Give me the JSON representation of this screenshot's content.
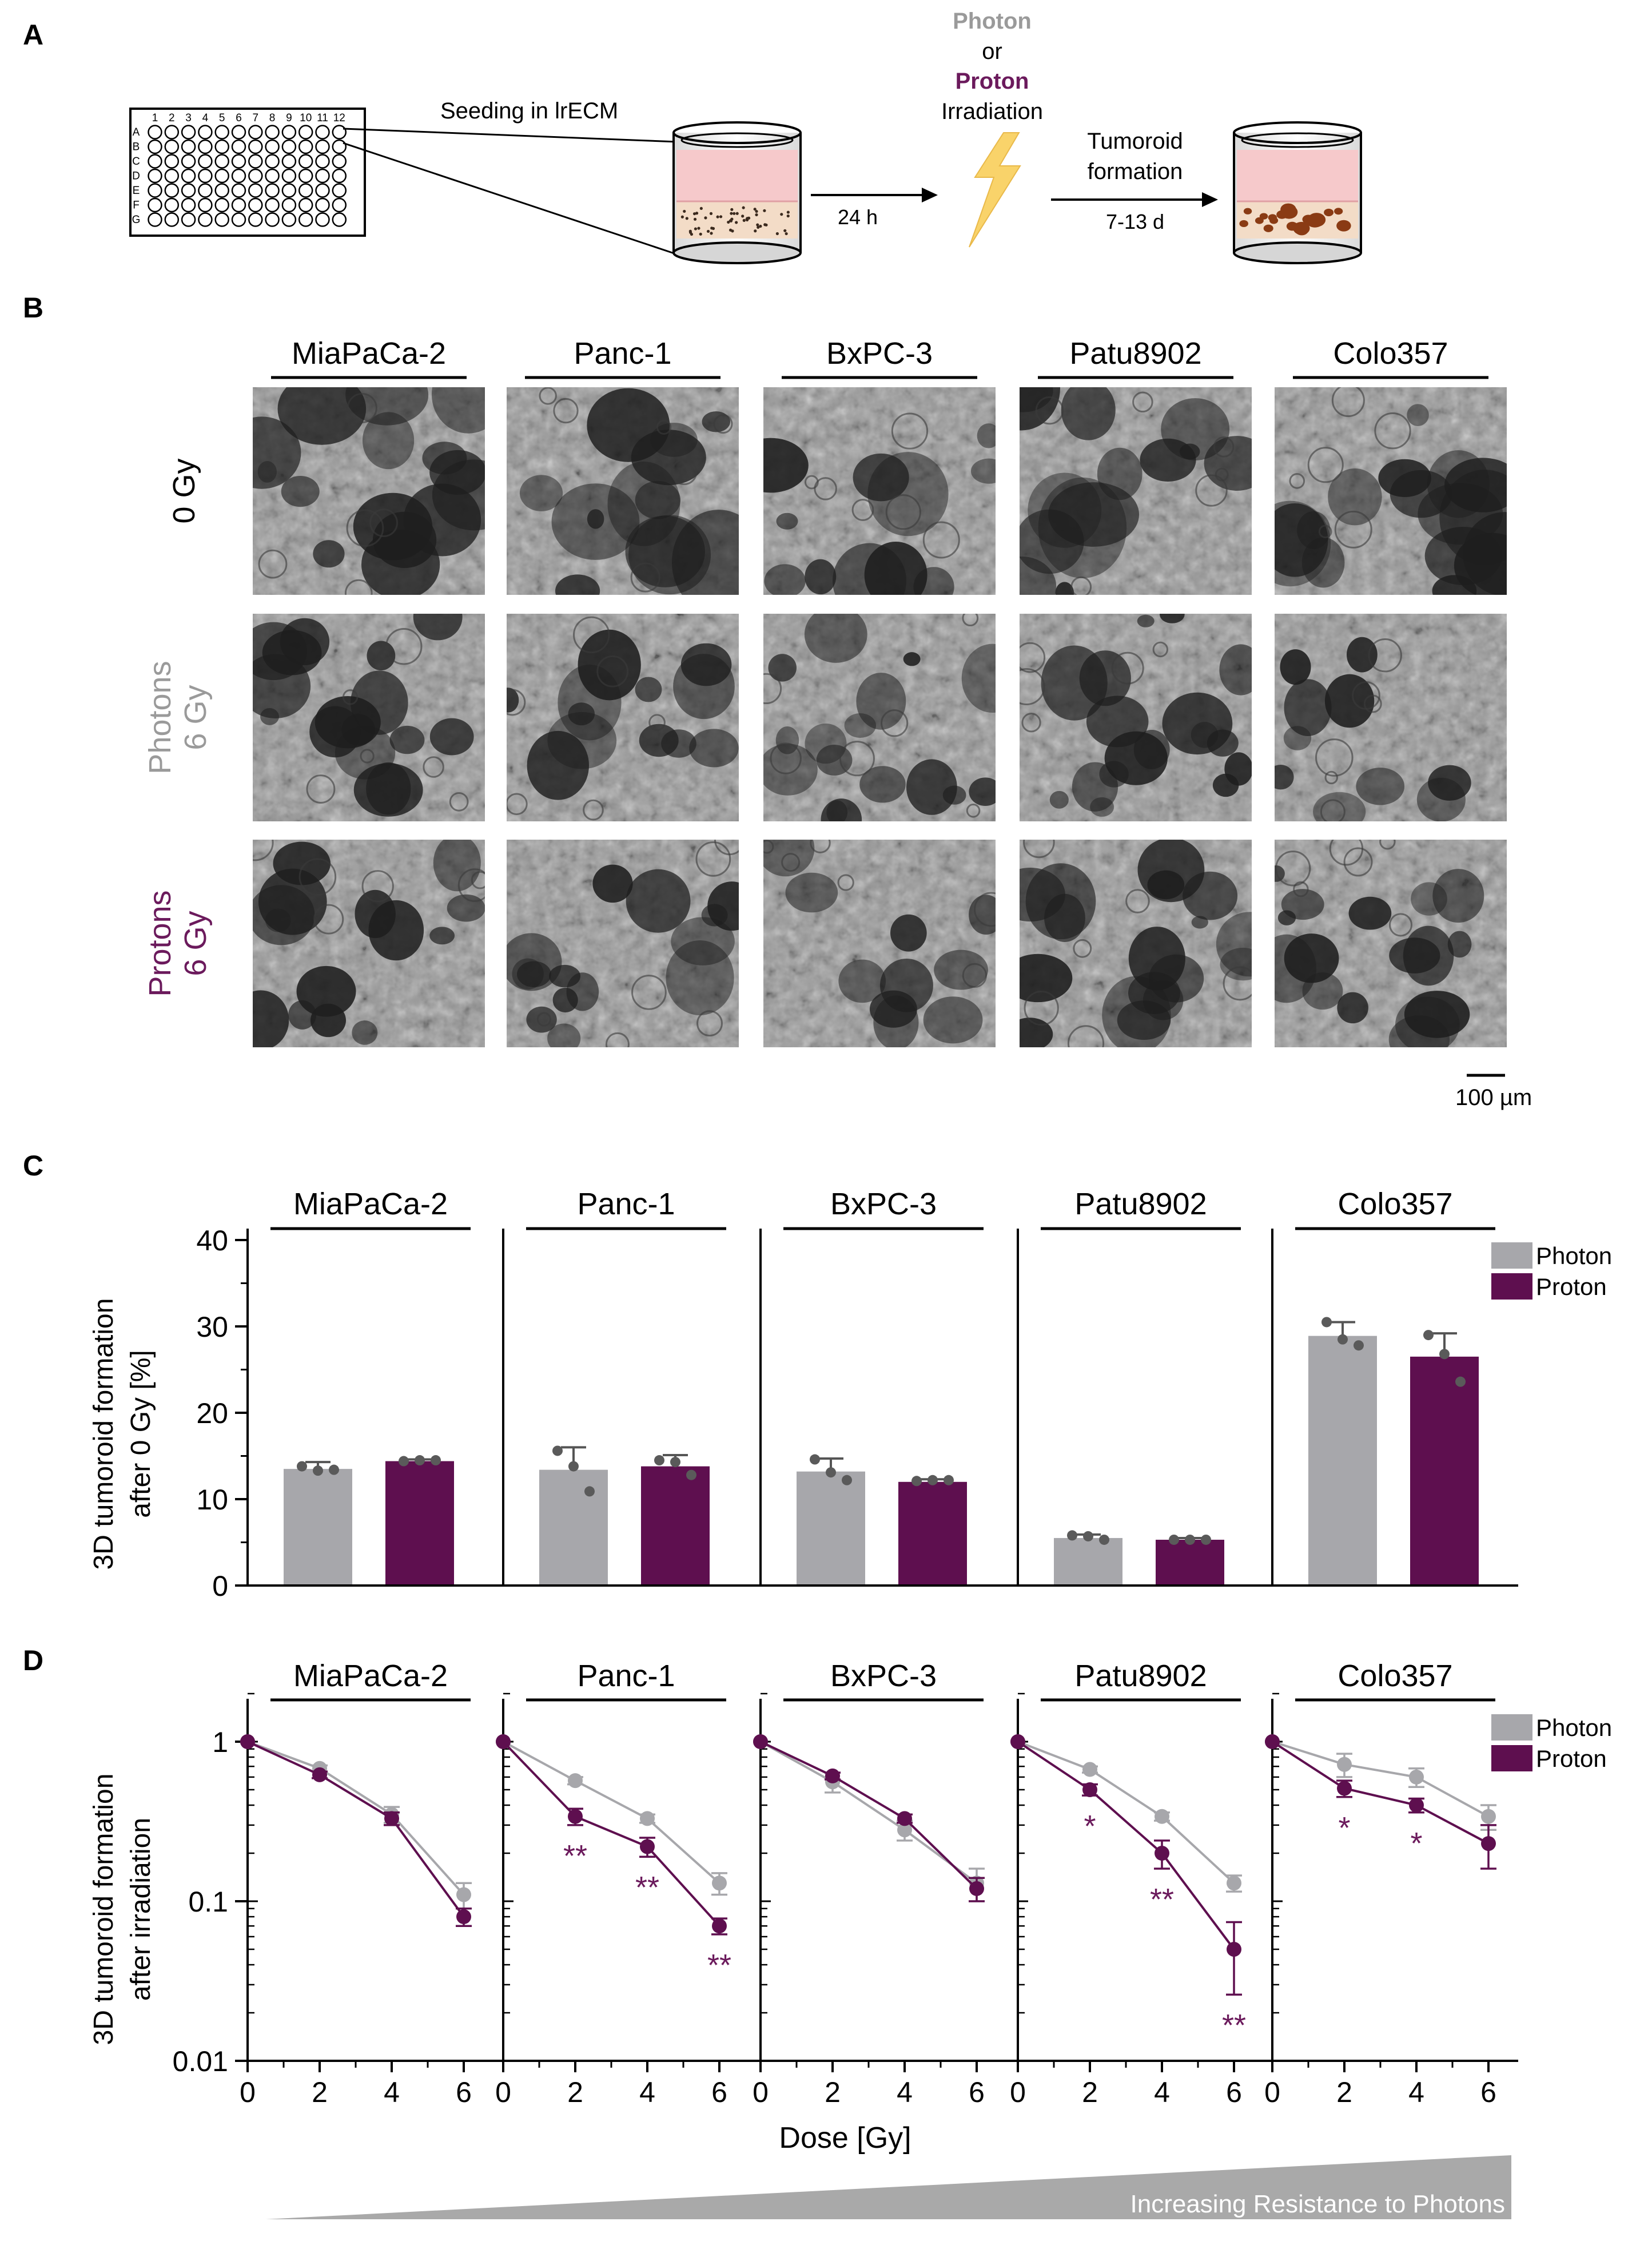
{
  "colors": {
    "photon": "#a7a7ab",
    "proton": "#5e0f4f",
    "photon_text": "#9a9a9a",
    "proton_text": "#6b1a5c",
    "well_pink": "#f6c9cb",
    "well_beige": "#f3dcc7",
    "bolt": "#f9d36a",
    "triangle": "#a9a9a9"
  },
  "panel_a": {
    "label": "A",
    "plate_columns": [
      "1",
      "2",
      "3",
      "4",
      "5",
      "6",
      "7",
      "8",
      "9",
      "10",
      "11",
      "12"
    ],
    "plate_rows": [
      "A",
      "B",
      "C",
      "D",
      "E",
      "F",
      "G"
    ],
    "seeding_text": "Seeding in lrECM",
    "time_1": "24 h",
    "irradiation": {
      "line1": "Photon",
      "line2": "or",
      "line3": "Proton",
      "line4": "Irradiation"
    },
    "tumoroid_line1": "Tumoroid",
    "tumoroid_line2": "formation",
    "time_2": "7-13 d"
  },
  "panel_b": {
    "label": "B",
    "cell_lines": [
      "MiaPaCa-2",
      "Panc-1",
      "BxPC-3",
      "Patu8902",
      "Colo357"
    ],
    "row_labels": [
      {
        "line1": "0 Gy",
        "line2": ""
      },
      {
        "line1": "Photons",
        "line2": "6 Gy"
      },
      {
        "line1": "Protons",
        "line2": "6 Gy"
      }
    ],
    "scale_bar": "100 µm"
  },
  "panel_c": {
    "label": "C",
    "ylabel_line1": "3D tumoroid formation",
    "ylabel_line2": "after 0 Gy [%]",
    "legend": [
      "Photon",
      "Proton"
    ]
  },
  "panel_d": {
    "label": "D",
    "ylabel_line1": "3D tumoroid formation",
    "ylabel_line2": "after irradiation",
    "xlabel": "Dose [Gy]",
    "legend": [
      "Photon",
      "Proton"
    ],
    "resistance_label": "Increasing Resistance to Photons"
  },
  "chart_data": [
    {
      "type": "bar",
      "panel": "C",
      "ylabel": "3D tumoroid formation after 0 Gy [%]",
      "ylim": [
        0,
        40
      ],
      "yticks": [
        0,
        10,
        20,
        30,
        40
      ],
      "legend_position": "top-right",
      "categories": [
        "MiaPaCa-2",
        "Panc-1",
        "BxPC-3",
        "Patu8902",
        "Colo357"
      ],
      "series": [
        {
          "name": "Photon",
          "values": [
            13.5,
            13.4,
            13.2,
            5.5,
            28.9
          ],
          "errors": [
            0.8,
            2.6,
            1.5,
            0.4,
            1.6
          ],
          "points": [
            [
              13.8,
              13.3,
              13.4
            ],
            [
              15.6,
              13.8,
              10.9
            ],
            [
              14.6,
              13.1,
              12.2
            ],
            [
              5.8,
              5.7,
              5.3
            ],
            [
              30.5,
              28.5,
              27.8
            ]
          ]
        },
        {
          "name": "Proton",
          "values": [
            14.4,
            13.8,
            12.0,
            5.3,
            26.5
          ],
          "errors": [
            0.2,
            1.3,
            0.3,
            0.2,
            2.7
          ],
          "points": [
            [
              14.4,
              14.5,
              14.5
            ],
            [
              14.5,
              14.3,
              12.8
            ],
            [
              12.1,
              12.2,
              12.2
            ],
            [
              5.3,
              5.3,
              5.3
            ],
            [
              29.0,
              26.8,
              23.6
            ]
          ]
        }
      ]
    },
    {
      "type": "line",
      "panel": "D",
      "xlabel": "Dose [Gy]",
      "ylabel": "3D tumoroid formation after irradiation",
      "y_scale": "log",
      "ylim": [
        0.01,
        2
      ],
      "yticks": [
        0.01,
        0.1,
        1
      ],
      "x": [
        0,
        2,
        4,
        6
      ],
      "xticks": [
        0,
        2,
        4,
        6
      ],
      "legend_position": "top-right",
      "panels": [
        {
          "cell_line": "MiaPaCa-2",
          "series": [
            {
              "name": "Photon",
              "values": [
                1,
                0.68,
                0.35,
                0.11
              ],
              "errors": [
                0,
                0.03,
                0.04,
                0.02
              ]
            },
            {
              "name": "Proton",
              "values": [
                1,
                0.62,
                0.33,
                0.08
              ],
              "errors": [
                0,
                0.03,
                0.03,
                0.01
              ]
            }
          ],
          "significance": [
            "",
            "",
            "",
            ""
          ]
        },
        {
          "cell_line": "Panc-1",
          "series": [
            {
              "name": "Photon",
              "values": [
                1,
                0.57,
                0.33,
                0.13
              ],
              "errors": [
                0,
                0.03,
                0.02,
                0.02
              ]
            },
            {
              "name": "Proton",
              "values": [
                1,
                0.34,
                0.22,
                0.07
              ],
              "errors": [
                0,
                0.04,
                0.03,
                0.008
              ]
            }
          ],
          "significance": [
            "",
            "**",
            "**",
            "**"
          ]
        },
        {
          "cell_line": "BxPC-3",
          "series": [
            {
              "name": "Photon",
              "values": [
                1,
                0.56,
                0.28,
                0.13
              ],
              "errors": [
                0,
                0.08,
                0.04,
                0.03
              ]
            },
            {
              "name": "Proton",
              "values": [
                1,
                0.61,
                0.33,
                0.12
              ],
              "errors": [
                0,
                0.03,
                0.02,
                0.02
              ]
            }
          ],
          "significance": [
            "",
            "",
            "",
            ""
          ]
        },
        {
          "cell_line": "Patu8902",
          "series": [
            {
              "name": "Photon",
              "values": [
                1,
                0.67,
                0.34,
                0.13
              ],
              "errors": [
                0,
                0.03,
                0.02,
                0.015
              ]
            },
            {
              "name": "Proton",
              "values": [
                1,
                0.5,
                0.2,
                0.05
              ],
              "errors": [
                0,
                0.04,
                0.04,
                0.024
              ]
            }
          ],
          "significance": [
            "",
            "*",
            "**",
            "**"
          ]
        },
        {
          "cell_line": "Colo357",
          "series": [
            {
              "name": "Photon",
              "values": [
                1,
                0.72,
                0.6,
                0.34
              ],
              "errors": [
                0,
                0.12,
                0.08,
                0.06
              ]
            },
            {
              "name": "Proton",
              "values": [
                1,
                0.51,
                0.4,
                0.23
              ],
              "errors": [
                0,
                0.06,
                0.04,
                0.07
              ]
            }
          ],
          "significance": [
            "",
            "*",
            "*",
            ""
          ]
        }
      ]
    }
  ]
}
